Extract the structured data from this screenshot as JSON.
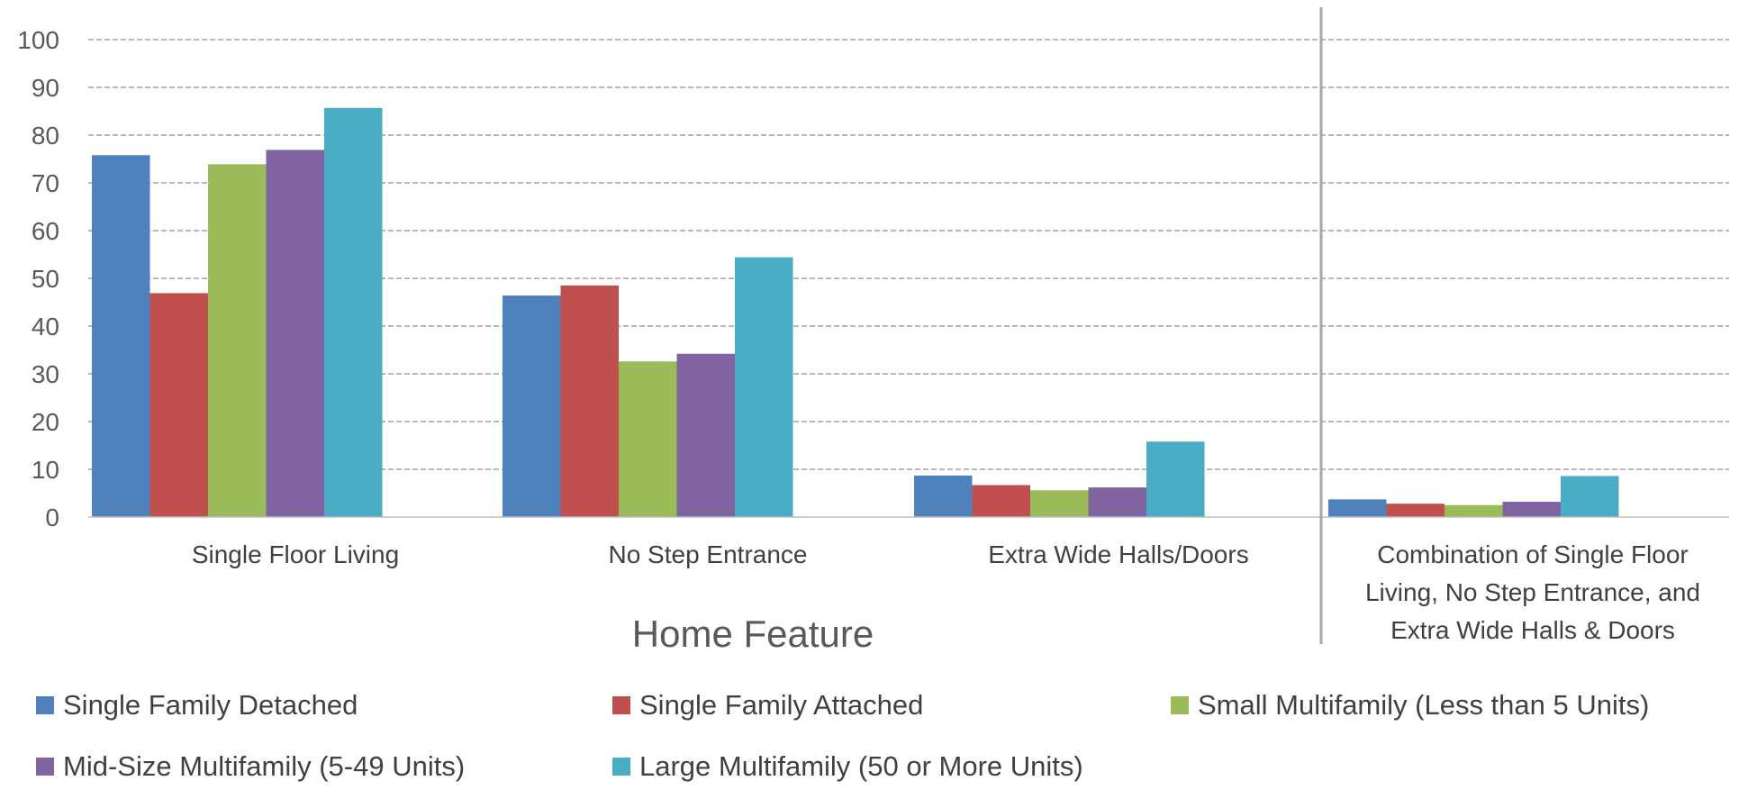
{
  "chart_data": {
    "type": "bar",
    "categories": [
      "Single Floor Living",
      "No Step Entrance",
      "Extra Wide Halls/Doors",
      "Combination of Single Floor Living, No Step Entrance, and Extra Wide Halls & Doors"
    ],
    "category_lines": [
      [
        "Single Floor Living"
      ],
      [
        "No Step Entrance"
      ],
      [
        "Extra Wide Halls/Doors"
      ],
      [
        "Combination of Single Floor",
        "Living, No Step Entrance, and",
        "Extra Wide Halls & Doors"
      ]
    ],
    "series": [
      {
        "name": "Single Family Detached",
        "color": "#4F81BD",
        "values": [
          75.8,
          46.4,
          8.7,
          3.7
        ]
      },
      {
        "name": "Single Family Attached",
        "color": "#C0504D",
        "values": [
          46.9,
          48.5,
          6.7,
          2.8
        ]
      },
      {
        "name": "Small Multifamily (Less than 5 Units)",
        "color": "#9BBB59",
        "values": [
          73.9,
          32.6,
          5.6,
          2.5
        ]
      },
      {
        "name": "Mid-Size Multifamily (5-49 Units)",
        "color": "#8064A2",
        "values": [
          76.9,
          34.2,
          6.2,
          3.2
        ]
      },
      {
        "name": "Large Multifamily (50 or More Units)",
        "color": "#4BACC6",
        "values": [
          85.7,
          54.4,
          15.8,
          8.6
        ]
      }
    ],
    "title": "",
    "xlabel": "Home Feature",
    "ylabel": "",
    "ylim": [
      0,
      100
    ],
    "yticks": [
      0,
      10,
      20,
      30,
      40,
      50,
      60,
      70,
      80,
      90,
      100
    ],
    "grid": true,
    "legend_position": "bottom"
  }
}
